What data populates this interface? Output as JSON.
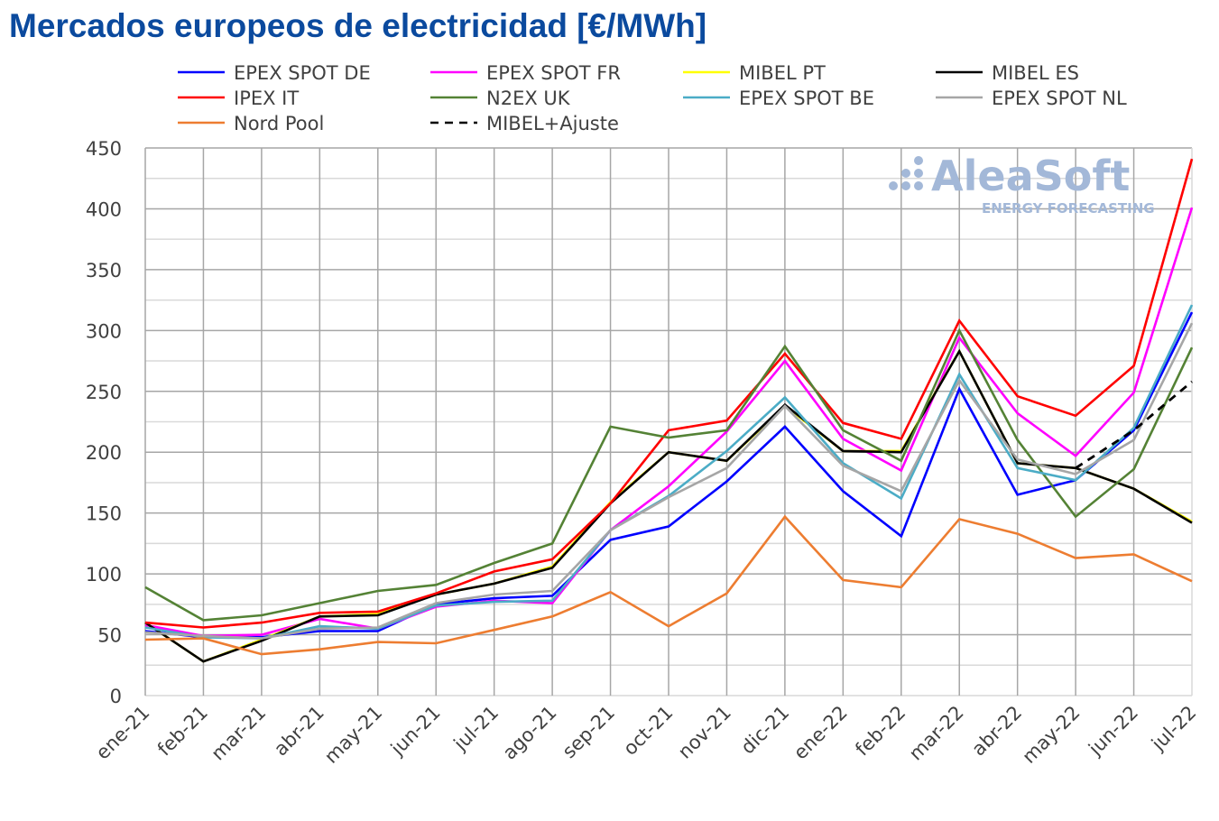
{
  "chart_data": {
    "type": "line",
    "title": "Mercados europeos de electricidad [€/MWh]",
    "xlabel": "",
    "ylabel": "",
    "ylim": [
      0,
      450
    ],
    "yticks": [
      0,
      50,
      100,
      150,
      200,
      250,
      300,
      350,
      400,
      450
    ],
    "grid": true,
    "legend_position": "top",
    "categories": [
      "ene-21",
      "feb-21",
      "mar-21",
      "abr-21",
      "may-21",
      "jun-21",
      "jul-21",
      "ago-21",
      "sep-21",
      "oct-21",
      "nov-21",
      "dic-21",
      "ene-22",
      "feb-22",
      "mar-22",
      "abr-22",
      "may-22",
      "jun-22",
      "jul-22"
    ],
    "series": [
      {
        "name": "EPEX SPOT DE",
        "color": "#0000ff",
        "dash": false,
        "values": [
          53,
          48,
          48,
          53,
          53,
          75,
          80,
          82,
          128,
          139,
          176,
          221,
          168,
          131,
          252,
          165,
          177,
          218,
          315
        ]
      },
      {
        "name": "EPEX SPOT FR",
        "color": "#ff00ff",
        "dash": false,
        "values": [
          58,
          49,
          50,
          63,
          55,
          73,
          78,
          76,
          136,
          172,
          217,
          275,
          211,
          185,
          294,
          232,
          197,
          249,
          401
        ]
      },
      {
        "name": "MIBEL PT",
        "color": "#ffff00",
        "dash": false,
        "values": [
          60,
          28,
          46,
          65,
          67,
          83,
          92,
          106,
          159,
          200,
          193,
          238,
          201,
          201,
          283,
          191,
          187,
          170,
          143
        ]
      },
      {
        "name": "MIBEL ES",
        "color": "#000000",
        "dash": false,
        "values": [
          60,
          28,
          45,
          65,
          66,
          83,
          92,
          105,
          158,
          200,
          193,
          239,
          201,
          200,
          283,
          191,
          187,
          170,
          142
        ]
      },
      {
        "name": "IPEX IT",
        "color": "#ff0000",
        "dash": false,
        "values": [
          60,
          56,
          60,
          68,
          69,
          84,
          102,
          112,
          158,
          218,
          226,
          281,
          224,
          211,
          308,
          246,
          230,
          271,
          441
        ]
      },
      {
        "name": "N2EX UK",
        "color": "#548235",
        "dash": false,
        "values": [
          89,
          62,
          66,
          76,
          86,
          91,
          109,
          125,
          221,
          212,
          218,
          287,
          218,
          193,
          300,
          210,
          147,
          186,
          286
        ]
      },
      {
        "name": "EPEX SPOT BE",
        "color": "#4bacc6",
        "dash": false,
        "values": [
          56,
          48,
          47,
          57,
          55,
          74,
          77,
          78,
          136,
          164,
          201,
          245,
          191,
          162,
          264,
          187,
          177,
          220,
          321
        ]
      },
      {
        "name": "EPEX SPOT NL",
        "color": "#a6a6a6",
        "dash": false,
        "values": [
          52,
          49,
          47,
          55,
          56,
          76,
          83,
          86,
          136,
          163,
          187,
          238,
          189,
          168,
          259,
          194,
          182,
          210,
          306
        ]
      },
      {
        "name": "Nord Pool",
        "color": "#ed7d31",
        "dash": false,
        "values": [
          46,
          47,
          34,
          38,
          44,
          43,
          54,
          65,
          85,
          57,
          84,
          147,
          95,
          89,
          145,
          133,
          113,
          116,
          94
        ]
      },
      {
        "name": "MIBEL+Ajuste",
        "color": "#000000",
        "dash": true,
        "values": [
          null,
          null,
          null,
          null,
          null,
          null,
          null,
          null,
          null,
          null,
          null,
          null,
          null,
          null,
          null,
          null,
          187,
          218,
          258
        ]
      }
    ]
  },
  "watermark": {
    "brand": "AleaSoft",
    "tagline": "ENERGY FORECASTING",
    "color": "#a3b8d8"
  }
}
